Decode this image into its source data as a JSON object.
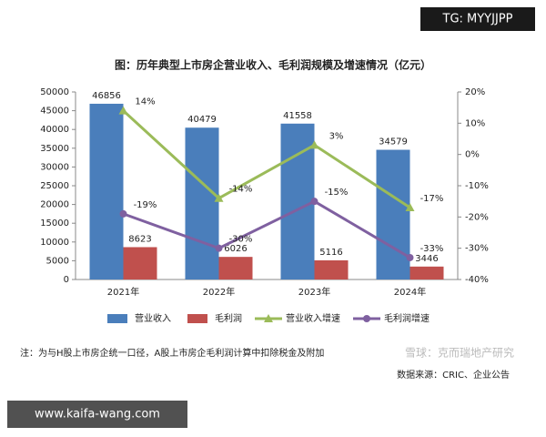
{
  "watermark_top": "TG: MYYJJPP",
  "watermark_bottom": "www.kaifa-wang.com",
  "watermark_source": "雪球：克而瑞地产研究",
  "note": "注：为与H股上市房企统一口径，A股上市房企毛利润计算中扣除税金及附加",
  "source": "数据来源：CRIC、企业公告",
  "chart_data": {
    "type": "bar",
    "title": "图：历年典型上市房企营业收入、毛利润规模及增速情况（亿元）",
    "categories": [
      "2021年",
      "2022年",
      "2023年",
      "2024年"
    ],
    "series": [
      {
        "name": "营业收入",
        "color": "#4a7ebb",
        "values": [
          46856,
          40479,
          41558,
          34579
        ]
      },
      {
        "name": "毛利润",
        "color": "#c0504d",
        "values": [
          8623,
          6026,
          5116,
          3446
        ]
      },
      {
        "name": "营业收入增速",
        "type": "line",
        "axis": "y2",
        "marker": "triangle",
        "color": "#9bbb59",
        "values": [
          14,
          -14,
          3,
          -17
        ],
        "value_labels": [
          "14%",
          "-14%",
          "3%",
          "-17%"
        ]
      },
      {
        "name": "毛利润增速",
        "type": "line",
        "axis": "y2",
        "marker": "circle",
        "color": "#7f60a0",
        "values": [
          -19,
          -30,
          -15,
          -33
        ],
        "value_labels": [
          "-19%",
          "-30%",
          "-15%",
          "-33%"
        ]
      }
    ],
    "ylim": [
      0,
      50000
    ],
    "yticks": [
      0,
      5000,
      10000,
      15000,
      20000,
      25000,
      30000,
      35000,
      40000,
      45000,
      50000
    ],
    "y2lim": [
      -40,
      20
    ],
    "y2ticks": [
      {
        "value": -40,
        "label": "-40%"
      },
      {
        "value": -30,
        "label": "-30%"
      },
      {
        "value": -20,
        "label": "-20%"
      },
      {
        "value": -10,
        "label": "-10%"
      },
      {
        "value": 0,
        "label": "0%"
      },
      {
        "value": 10,
        "label": "10%"
      },
      {
        "value": 20,
        "label": "20%"
      }
    ],
    "grid": false,
    "legend": "bottom"
  }
}
